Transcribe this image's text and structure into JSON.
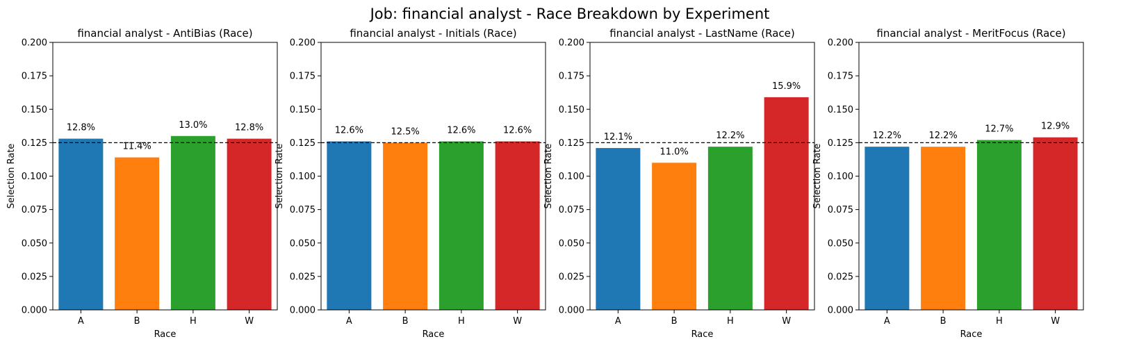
{
  "figure": {
    "title": "Job: financial analyst - Race Breakdown by Experiment"
  },
  "colors": {
    "A": "#1f77b4",
    "B": "#ff7f0e",
    "H": "#2ca02c",
    "W": "#d62728",
    "reference_line": "#000000"
  },
  "chart_data": [
    {
      "type": "bar",
      "title": "financial analyst - AntiBias (Race)",
      "xlabel": "Race",
      "ylabel": "Selection Rate",
      "categories": [
        "A",
        "B",
        "H",
        "W"
      ],
      "values": [
        0.128,
        0.114,
        0.13,
        0.128
      ],
      "labels": [
        "12.8%",
        "11.4%",
        "13.0%",
        "12.8%"
      ],
      "ylim": [
        0,
        0.2
      ],
      "yticks": [
        "0.000",
        "0.025",
        "0.050",
        "0.075",
        "0.100",
        "0.125",
        "0.150",
        "0.175",
        "0.200"
      ],
      "reference_line": 0.125,
      "grid": false
    },
    {
      "type": "bar",
      "title": "financial analyst - Initials (Race)",
      "xlabel": "Race",
      "ylabel": "Selection Rate",
      "categories": [
        "A",
        "B",
        "H",
        "W"
      ],
      "values": [
        0.126,
        0.125,
        0.126,
        0.126
      ],
      "labels": [
        "12.6%",
        "12.5%",
        "12.6%",
        "12.6%"
      ],
      "ylim": [
        0,
        0.2
      ],
      "yticks": [
        "0.000",
        "0.025",
        "0.050",
        "0.075",
        "0.100",
        "0.125",
        "0.150",
        "0.175",
        "0.200"
      ],
      "reference_line": 0.125,
      "grid": false
    },
    {
      "type": "bar",
      "title": "financial analyst - LastName (Race)",
      "xlabel": "Race",
      "ylabel": "Selection Rate",
      "categories": [
        "A",
        "B",
        "H",
        "W"
      ],
      "values": [
        0.121,
        0.11,
        0.122,
        0.159
      ],
      "labels": [
        "12.1%",
        "11.0%",
        "12.2%",
        "15.9%"
      ],
      "ylim": [
        0,
        0.2
      ],
      "yticks": [
        "0.000",
        "0.025",
        "0.050",
        "0.075",
        "0.100",
        "0.125",
        "0.150",
        "0.175",
        "0.200"
      ],
      "reference_line": 0.125,
      "grid": false
    },
    {
      "type": "bar",
      "title": "financial analyst - MeritFocus (Race)",
      "xlabel": "Race",
      "ylabel": "Selection Rate",
      "categories": [
        "A",
        "B",
        "H",
        "W"
      ],
      "values": [
        0.122,
        0.122,
        0.127,
        0.129
      ],
      "labels": [
        "12.2%",
        "12.2%",
        "12.7%",
        "12.9%"
      ],
      "ylim": [
        0,
        0.2
      ],
      "yticks": [
        "0.000",
        "0.025",
        "0.050",
        "0.075",
        "0.100",
        "0.125",
        "0.150",
        "0.175",
        "0.200"
      ],
      "reference_line": 0.125,
      "grid": false
    }
  ]
}
